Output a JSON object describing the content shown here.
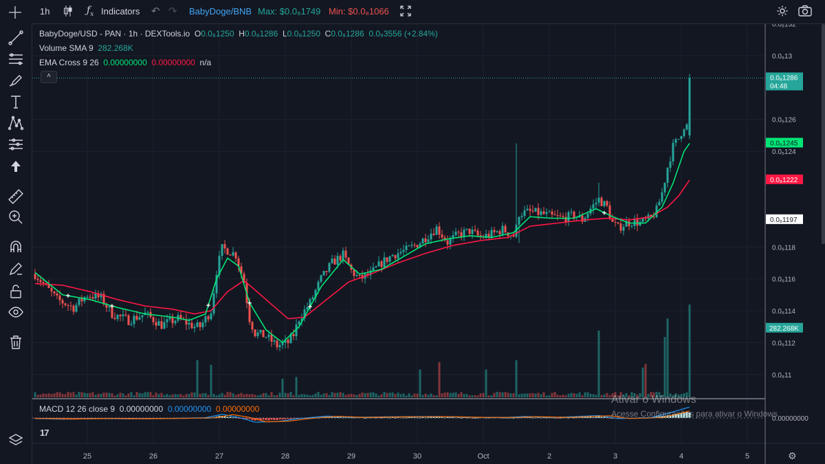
{
  "toolbar": {
    "interval": "1h",
    "indicators_label": "Indicators",
    "pair_link": "BabyDoge/BNB",
    "max_label": "Max: $0.0₈1749",
    "min_label": "Min: $0.0₈1066",
    "icons": [
      "candles-icon",
      "fx-icon",
      "undo-icon",
      "redo-icon",
      "fullscreen-icon",
      "settings-icon",
      "camera-icon"
    ]
  },
  "left_tools": [
    "crosshair-icon",
    "trendline-icon",
    "fib-icon",
    "brush-icon",
    "text-icon",
    "pattern-icon",
    "forecast-icon",
    "arrow-up-icon",
    "ruler-icon",
    "zoom-icon",
    "magnet-icon",
    "lock-pencil-icon",
    "lock-icon",
    "eye-icon",
    "trash-icon",
    "layers-icon"
  ],
  "legend": {
    "symbol": "BabyDoge/USD - PAN · 1h · DEXTools.io",
    "o_label": "O",
    "o_val": "0.0₈1250",
    "h_label": "H",
    "h_val": "0.0₈1286",
    "l_label": "L",
    "l_val": "0.0₈1250",
    "c_label": "C",
    "c_val": "0.0₈1286",
    "change": "0.0₉3556 (+2.84%)",
    "volume_label": "Volume SMA 9",
    "volume_val": "282.268K",
    "ema_label": "EMA Cross 9 26",
    "ema_fast": "0.00000000",
    "ema_slow": "0.00000000",
    "ema_na": "n/a",
    "collapse_icon": "˄",
    "macd_label": "MACD 12 26 close 9",
    "macd_val1": "0.00000000",
    "macd_val2": "0.00000000",
    "macd_val3": "0.00000000"
  },
  "price_axis": {
    "ticks": [
      {
        "label": "0.0₈132",
        "v": 13.2
      },
      {
        "label": "0.0₈13",
        "v": 13.0
      },
      {
        "label": "0.0₈126",
        "v": 12.6
      },
      {
        "label": "0.0₈124",
        "v": 12.4
      },
      {
        "label": "0.0₈118",
        "v": 11.8
      },
      {
        "label": "0.0₈116",
        "v": 11.6
      },
      {
        "label": "0.0₈114",
        "v": 11.4
      },
      {
        "label": "0.0₈112",
        "v": 11.2
      },
      {
        "label": "0.0₈11",
        "v": 11.0
      }
    ],
    "badges": [
      {
        "label": "0.0₈1286",
        "sub": "04:48",
        "v": 12.86,
        "bg": "#26a69a",
        "fg": "#ffffff"
      },
      {
        "label": "0.0₈1245",
        "v": 12.45,
        "bg": "#00e676",
        "fg": "#131722"
      },
      {
        "label": "0.0₈1222",
        "v": 12.22,
        "bg": "#ff1744",
        "fg": "#ffffff"
      },
      {
        "label": "0.0₈1197",
        "v": 11.97,
        "bg": "#ffffff",
        "fg": "#131722"
      }
    ],
    "volume_badge": "282.268K",
    "macd_zero": "0.00000000"
  },
  "time_axis": {
    "labels": [
      {
        "label": "25",
        "i": 19
      },
      {
        "label": "26",
        "i": 43
      },
      {
        "label": "27",
        "i": 67
      },
      {
        "label": "28",
        "i": 91
      },
      {
        "label": "29",
        "i": 115
      },
      {
        "label": "30",
        "i": 139
      },
      {
        "label": "Oct",
        "i": 163
      },
      {
        "label": "2",
        "i": 187
      },
      {
        "label": "3",
        "i": 211
      },
      {
        "label": "4",
        "i": 235
      },
      {
        "label": "5",
        "i": 259
      }
    ]
  },
  "watermark": {
    "title": "Ativar o Windows",
    "subtitle": "Acesse Configurações para ativar o Windows"
  },
  "branding": {
    "logo_text": "17"
  },
  "colors": {
    "bg": "#131722",
    "grid": "#1e222d",
    "up": "#26a69a",
    "down": "#ef5350",
    "ema_fast": "#00e676",
    "ema_slow": "#ff1744",
    "macd": "#2962ff",
    "signal": "#ff6d00"
  },
  "chart_data": {
    "type": "candlestick",
    "title": "BabyDoge/USD - PAN · 1h · DEXTools.io",
    "price_unit": "x1e-9 USD",
    "ylim": [
      10.9,
      13.25
    ],
    "x_labels": [
      "25",
      "26",
      "27",
      "28",
      "29",
      "30",
      "Oct",
      "2",
      "3",
      "4",
      "5"
    ],
    "last_price": 12.86,
    "ema_fast_last": 12.45,
    "ema_slow_last": 12.22,
    "anchors": [
      [
        0,
        11.63
      ],
      [
        8,
        11.47
      ],
      [
        14,
        11.42
      ],
      [
        19,
        11.5
      ],
      [
        24,
        11.48
      ],
      [
        28,
        11.38
      ],
      [
        34,
        11.34
      ],
      [
        40,
        11.38
      ],
      [
        46,
        11.31
      ],
      [
        52,
        11.35
      ],
      [
        58,
        11.3
      ],
      [
        60,
        11.3
      ],
      [
        64,
        11.4
      ],
      [
        66,
        11.65
      ],
      [
        68,
        11.79
      ],
      [
        70,
        11.78
      ],
      [
        73,
        11.75
      ],
      [
        76,
        11.58
      ],
      [
        78,
        11.35
      ],
      [
        80,
        11.26
      ],
      [
        84,
        11.24
      ],
      [
        88,
        11.18
      ],
      [
        92,
        11.2
      ],
      [
        94,
        11.25
      ],
      [
        96,
        11.35
      ],
      [
        100,
        11.45
      ],
      [
        104,
        11.6
      ],
      [
        108,
        11.7
      ],
      [
        112,
        11.75
      ],
      [
        115,
        11.65
      ],
      [
        118,
        11.6
      ],
      [
        122,
        11.63
      ],
      [
        126,
        11.7
      ],
      [
        130,
        11.75
      ],
      [
        135,
        11.78
      ],
      [
        140,
        11.83
      ],
      [
        146,
        11.92
      ],
      [
        150,
        11.83
      ],
      [
        154,
        11.88
      ],
      [
        158,
        11.9
      ],
      [
        162,
        11.86
      ],
      [
        166,
        11.88
      ],
      [
        170,
        11.91
      ],
      [
        174,
        11.87
      ],
      [
        175,
        11.92
      ],
      [
        176,
        12.01
      ],
      [
        180,
        12.02
      ],
      [
        184,
        12.01
      ],
      [
        188,
        11.99
      ],
      [
        192,
        11.98
      ],
      [
        196,
        12.0
      ],
      [
        199,
        11.97
      ],
      [
        202,
        12.04
      ],
      [
        205,
        12.1
      ],
      [
        208,
        12.05
      ],
      [
        210,
        11.95
      ],
      [
        212,
        11.92
      ],
      [
        215,
        11.95
      ],
      [
        218,
        11.96
      ],
      [
        220,
        11.95
      ],
      [
        224,
        11.98
      ],
      [
        226,
        12.03
      ],
      [
        228,
        12.14
      ],
      [
        230,
        12.3
      ],
      [
        232,
        12.43
      ],
      [
        234,
        12.48
      ],
      [
        236,
        12.56
      ],
      [
        237,
        12.56
      ],
      [
        238,
        12.86
      ]
    ],
    "ema_fast_anchors": [
      [
        0,
        11.64
      ],
      [
        10,
        11.5
      ],
      [
        20,
        11.47
      ],
      [
        30,
        11.42
      ],
      [
        40,
        11.38
      ],
      [
        50,
        11.36
      ],
      [
        56,
        11.34
      ],
      [
        62,
        11.38
      ],
      [
        66,
        11.6
      ],
      [
        70,
        11.73
      ],
      [
        74,
        11.68
      ],
      [
        78,
        11.45
      ],
      [
        84,
        11.28
      ],
      [
        90,
        11.2
      ],
      [
        96,
        11.3
      ],
      [
        104,
        11.55
      ],
      [
        112,
        11.72
      ],
      [
        118,
        11.63
      ],
      [
        126,
        11.66
      ],
      [
        134,
        11.74
      ],
      [
        142,
        11.82
      ],
      [
        150,
        11.85
      ],
      [
        158,
        11.87
      ],
      [
        166,
        11.86
      ],
      [
        174,
        11.89
      ],
      [
        180,
        11.99
      ],
      [
        188,
        11.98
      ],
      [
        196,
        11.98
      ],
      [
        204,
        12.04
      ],
      [
        210,
        11.99
      ],
      [
        216,
        11.95
      ],
      [
        222,
        11.95
      ],
      [
        228,
        12.05
      ],
      [
        232,
        12.2
      ],
      [
        236,
        12.4
      ],
      [
        238,
        12.45
      ]
    ],
    "ema_slow_anchors": [
      [
        0,
        11.57
      ],
      [
        10,
        11.56
      ],
      [
        20,
        11.52
      ],
      [
        30,
        11.47
      ],
      [
        40,
        11.43
      ],
      [
        50,
        11.41
      ],
      [
        58,
        11.38
      ],
      [
        64,
        11.4
      ],
      [
        70,
        11.52
      ],
      [
        76,
        11.59
      ],
      [
        80,
        11.53
      ],
      [
        86,
        11.44
      ],
      [
        92,
        11.35
      ],
      [
        98,
        11.36
      ],
      [
        106,
        11.47
      ],
      [
        114,
        11.58
      ],
      [
        122,
        11.63
      ],
      [
        132,
        11.7
      ],
      [
        142,
        11.76
      ],
      [
        152,
        11.81
      ],
      [
        162,
        11.84
      ],
      [
        172,
        11.86
      ],
      [
        180,
        11.93
      ],
      [
        190,
        11.95
      ],
      [
        200,
        11.97
      ],
      [
        208,
        11.98
      ],
      [
        216,
        11.97
      ],
      [
        224,
        11.99
      ],
      [
        230,
        12.05
      ],
      [
        234,
        12.12
      ],
      [
        238,
        12.22
      ]
    ],
    "volume_spikes": [
      [
        59,
        0.4
      ],
      [
        64,
        0.35
      ],
      [
        90,
        0.2
      ],
      [
        95,
        0.22
      ],
      [
        140,
        0.3
      ],
      [
        147,
        0.38
      ],
      [
        164,
        0.3
      ],
      [
        175,
        0.4
      ],
      [
        205,
        0.72
      ],
      [
        221,
        0.32
      ],
      [
        222,
        0.36
      ],
      [
        229,
        0.65
      ],
      [
        230,
        0.85
      ],
      [
        238,
        1.0
      ]
    ],
    "macd_wave": [
      [
        0,
        -0.05
      ],
      [
        10,
        -0.1
      ],
      [
        24,
        -0.05
      ],
      [
        34,
        -0.08
      ],
      [
        50,
        -0.04
      ],
      [
        62,
        0.02
      ],
      [
        68,
        0.3
      ],
      [
        74,
        0.05
      ],
      [
        80,
        -0.35
      ],
      [
        88,
        -0.3
      ],
      [
        96,
        -0.05
      ],
      [
        106,
        0.15
      ],
      [
        116,
        0.05
      ],
      [
        130,
        0.1
      ],
      [
        146,
        0.12
      ],
      [
        160,
        0.05
      ],
      [
        172,
        0.05
      ],
      [
        178,
        0.12
      ],
      [
        190,
        0.05
      ],
      [
        205,
        0.2
      ],
      [
        212,
        -0.05
      ],
      [
        224,
        0.03
      ],
      [
        232,
        0.5
      ],
      [
        238,
        0.9
      ]
    ]
  }
}
